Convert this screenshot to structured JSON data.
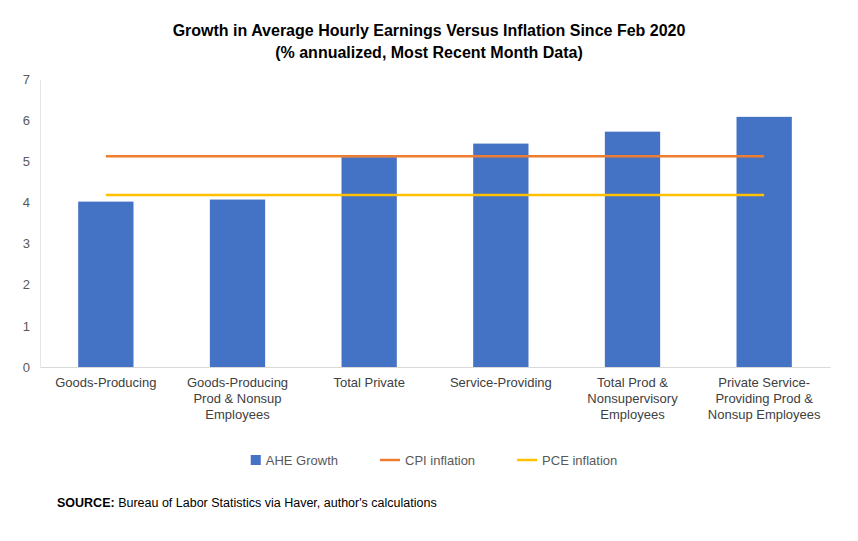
{
  "chart_data": {
    "type": "bar",
    "title": "Growth in Average Hourly Earnings Versus Inflation Since Feb 2020",
    "subtitle": "(% annualized, Most Recent Month Data)",
    "categories": [
      "Goods-Producing",
      "Goods-Producing Prod & Nonsup Employees",
      "Total Private",
      "Service-Providing",
      "Total Prod & Nonsupervisory Employees",
      "Private Service-Providing Prod & Nonsup Employees"
    ],
    "series": [
      {
        "name": "AHE Growth",
        "type": "bar",
        "color": "#4472c4",
        "values": [
          4.02,
          4.07,
          5.1,
          5.43,
          5.72,
          6.08
        ]
      },
      {
        "name": "CPI inflation",
        "type": "line",
        "color": "#ed7d31",
        "values": [
          5.12,
          5.12,
          5.12,
          5.12,
          5.12,
          5.12
        ]
      },
      {
        "name": "PCE inflation",
        "type": "line",
        "color": "#ffc000",
        "values": [
          4.18,
          4.18,
          4.18,
          4.18,
          4.18,
          4.18
        ]
      }
    ],
    "ylim": [
      0,
      7
    ],
    "yticks": [
      0,
      1,
      2,
      3,
      4,
      5,
      6,
      7
    ],
    "grid": false,
    "legend": "bottom",
    "source": "SOURCE: Bureau of Labor Statistics via Haver, author's calculations"
  }
}
